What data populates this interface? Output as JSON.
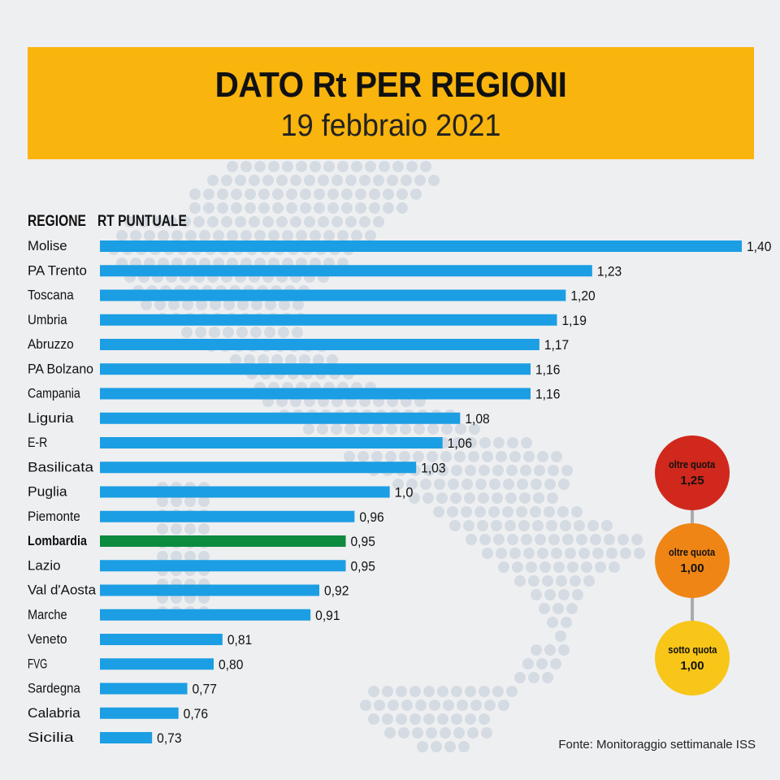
{
  "header": {
    "title": "DATO Rt PER REGIONI",
    "subtitle": "19 febbraio 2021"
  },
  "columns": {
    "region": "REGIONE",
    "value": "RT PUNTUALE"
  },
  "legend": [
    {
      "label": "oltre quota",
      "value": "1,25",
      "color": "#d0281c"
    },
    {
      "label": "oltre quota",
      "value": "1,00",
      "color": "#ef8514"
    },
    {
      "label": "sotto quota",
      "value": "1,00",
      "color": "#f7c618"
    }
  ],
  "source": "Fonte: Monitoraggio settimanale ISS",
  "colors": {
    "bar": "#1b9ee3",
    "highlight_bar": "#0c8a3e",
    "banner": "#f9b40d"
  },
  "chart_data": {
    "type": "bar",
    "orientation": "horizontal",
    "categories": [
      "Molise",
      "PA Trento",
      "Toscana",
      "Umbria",
      "Abruzzo",
      "PA Bolzano",
      "Campania",
      "Liguria",
      "E-R",
      "Basilicata",
      "Puglia",
      "Piemonte",
      "Lombardia",
      "Lazio",
      "Val d'Aosta",
      "Marche",
      "Veneto",
      "FVG",
      "Sardegna",
      "Calabria",
      "Sicilia"
    ],
    "values": [
      1.4,
      1.23,
      1.2,
      1.19,
      1.17,
      1.16,
      1.16,
      1.08,
      1.06,
      1.03,
      1.0,
      0.96,
      0.95,
      0.95,
      0.92,
      0.91,
      0.81,
      0.8,
      0.77,
      0.76,
      0.73
    ],
    "value_labels": [
      "1,40",
      "1,23",
      "1,20",
      "1,19",
      "1,17",
      "1,16",
      "1,16",
      "1,08",
      "1,06",
      "1,03",
      "1,0",
      "0,96",
      "0,95",
      "0,95",
      "0,92",
      "0,91",
      "0,81",
      "0,80",
      "0,77",
      "0,76",
      "0,73"
    ],
    "highlight": "Lombardia",
    "title": "DATO Rt PER REGIONI",
    "xlabel": "RT PUNTUALE",
    "ylabel": "REGIONE"
  }
}
